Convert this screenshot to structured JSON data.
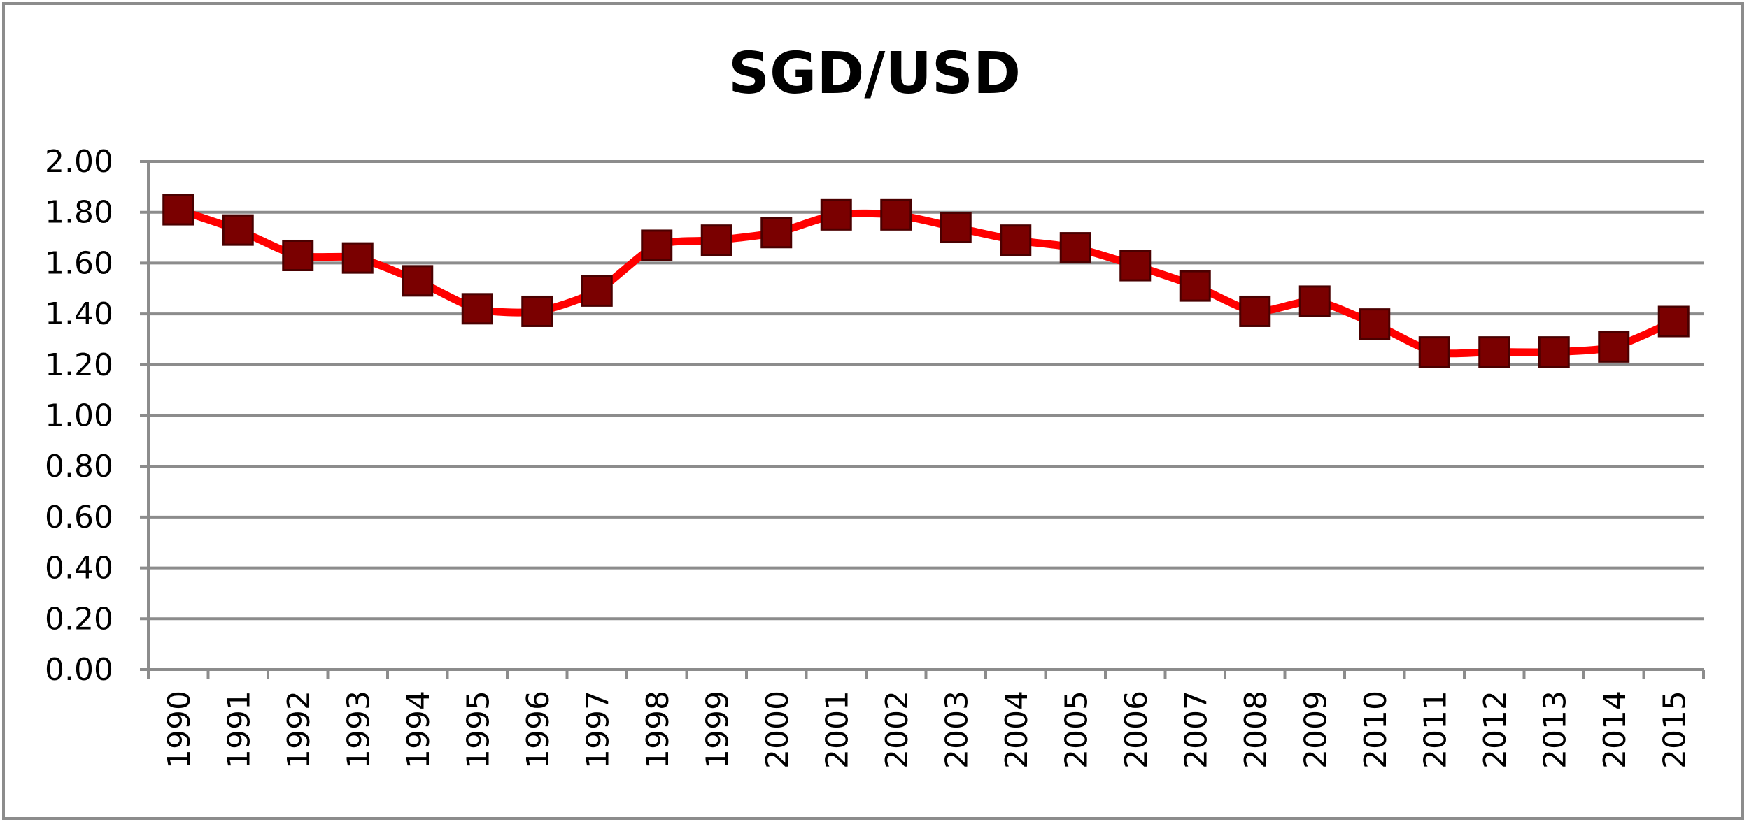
{
  "chart_data": {
    "type": "line",
    "title": "SGD/USD",
    "xlabel": "",
    "ylabel": "",
    "categories": [
      "1990",
      "1991",
      "1992",
      "1993",
      "1994",
      "1995",
      "1996",
      "1997",
      "1998",
      "1999",
      "2000",
      "2001",
      "2002",
      "2003",
      "2004",
      "2005",
      "2006",
      "2007",
      "2008",
      "2009",
      "2010",
      "2011",
      "2012",
      "2013",
      "2014",
      "2015"
    ],
    "series": [
      {
        "values": [
          1.81,
          1.73,
          1.63,
          1.62,
          1.53,
          1.42,
          1.41,
          1.49,
          1.67,
          1.69,
          1.72,
          1.79,
          1.79,
          1.74,
          1.69,
          1.66,
          1.59,
          1.51,
          1.41,
          1.45,
          1.36,
          1.25,
          1.25,
          1.25,
          1.27,
          1.37
        ],
        "line_color": "#ff0000",
        "marker_color": "#7a0000",
        "marker": "square"
      }
    ],
    "ylim": [
      0,
      2
    ],
    "yticks": [
      "0.00",
      "0.20",
      "0.40",
      "0.60",
      "0.80",
      "1.00",
      "1.20",
      "1.40",
      "1.60",
      "1.80",
      "2.00"
    ],
    "grid": true,
    "legend": "none",
    "x_tick_rotation": "vertical"
  }
}
